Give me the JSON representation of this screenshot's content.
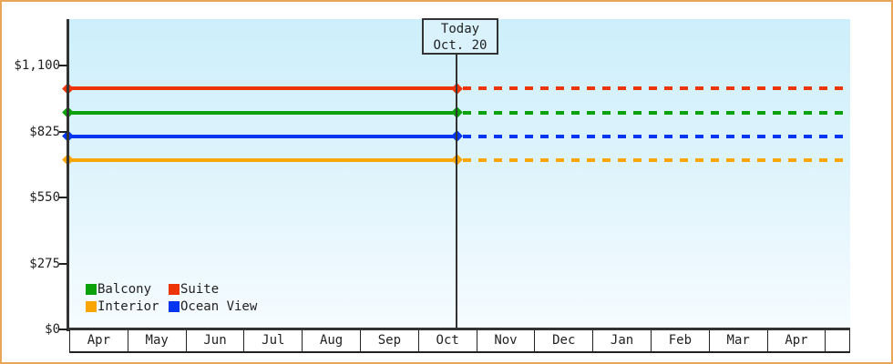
{
  "window": {
    "frame_color": "#e9a65a",
    "axis_color": "#333333",
    "text_color": "#222222",
    "plot_bg_top": "#cdeffb",
    "plot_bg_bottom": "#f6fcff"
  },
  "today_annotation": {
    "line1": "Today",
    "line2": "Oct. 20"
  },
  "chart_data": {
    "type": "line",
    "title": "",
    "xlabel": "",
    "ylabel": "",
    "categories": [
      "Apr",
      "May",
      "Jun",
      "Jul",
      "Aug",
      "Sep",
      "Oct",
      "Nov",
      "Dec",
      "Jan",
      "Feb",
      "Mar",
      "Apr"
    ],
    "y_ticks": [
      {
        "label": "$0",
        "value": 0
      },
      {
        "label": "$275",
        "value": 275
      },
      {
        "label": "$550",
        "value": 550
      },
      {
        "label": "$825",
        "value": 825
      },
      {
        "label": "$1,100",
        "value": 1100
      }
    ],
    "ylim": [
      0,
      1293
    ],
    "grid": false,
    "today": {
      "category": "Oct",
      "day": 20,
      "label": "Oct. 20"
    },
    "line_style": {
      "before_today": "solid",
      "after_today": "dashed"
    },
    "series": [
      {
        "name": "Suite",
        "color": "#ee3305",
        "value": 1005
      },
      {
        "name": "Balcony",
        "color": "#0ba10b",
        "value": 903
      },
      {
        "name": "Ocean View",
        "color": "#0435f0",
        "value": 805
      },
      {
        "name": "Interior",
        "color": "#f9a504",
        "value": 706
      }
    ],
    "legend_position": "bottom-left"
  },
  "legend": {
    "items": [
      {
        "label": "Balcony",
        "color": "#0ba10b"
      },
      {
        "label": "Suite",
        "color": "#ee3305"
      },
      {
        "label": "Interior",
        "color": "#f9a504"
      },
      {
        "label": "Ocean View",
        "color": "#0435f0"
      }
    ]
  }
}
